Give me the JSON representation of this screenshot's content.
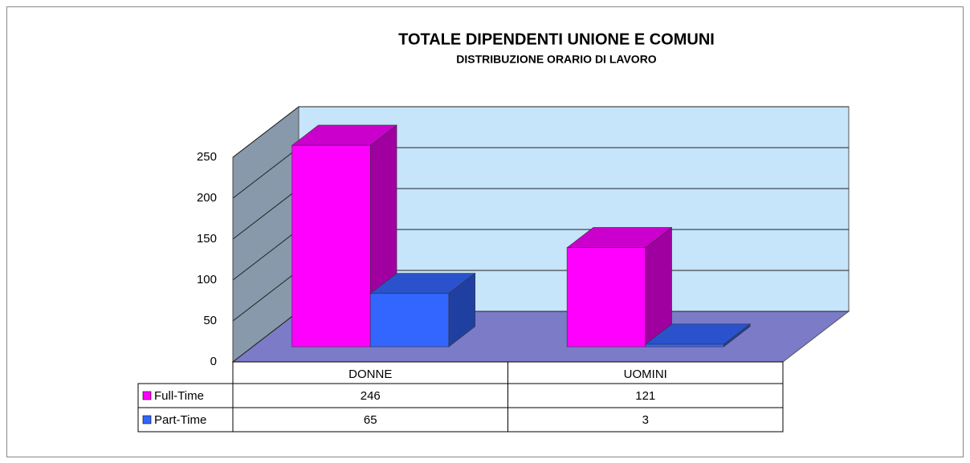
{
  "chart_data": {
    "type": "bar3d",
    "title": "TOTALE DIPENDENTI UNIONE E COMUNI",
    "subtitle": "DISTRIBUZIONE ORARIO DI LAVORO",
    "categories": [
      "DONNE",
      "UOMINI"
    ],
    "series": [
      {
        "name": "Full-Time",
        "color": "#ff00ff",
        "values": [
          246,
          121
        ]
      },
      {
        "name": "Part-Time",
        "color": "#3366ff",
        "values": [
          65,
          3
        ]
      }
    ],
    "ylim": [
      0,
      250
    ],
    "yticks": [
      0,
      50,
      100,
      150,
      200,
      250
    ],
    "grid": true
  }
}
